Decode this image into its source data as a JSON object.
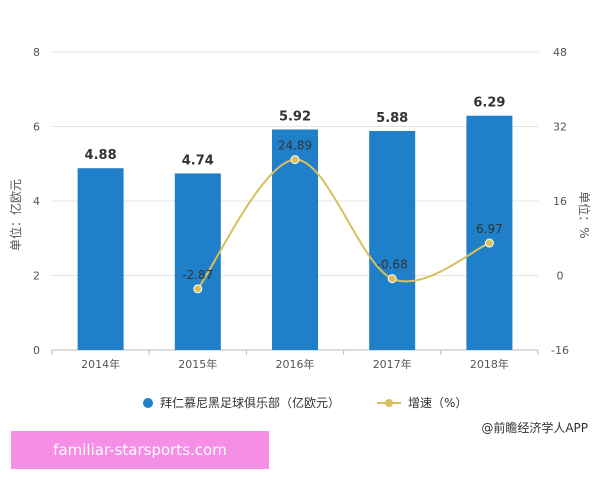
{
  "chart_data": {
    "type": "bar",
    "categories": [
      "2014年",
      "2015年",
      "2016年",
      "2017年",
      "2018年"
    ],
    "series": [
      {
        "name": "拜仁慕尼黑足球俱乐部（亿欧元）",
        "type": "bar",
        "axis": "left",
        "values": [
          4.88,
          4.74,
          5.92,
          5.88,
          6.29
        ],
        "labels": [
          "4.88",
          "4.74",
          "5.92",
          "5.88",
          "6.29"
        ]
      },
      {
        "name": "增速（%）",
        "type": "line",
        "axis": "right",
        "values": [
          null,
          -2.87,
          24.89,
          -0.68,
          6.97
        ],
        "labels": [
          "",
          "-2.87",
          "24.89",
          "-0.68",
          "6.97"
        ]
      }
    ],
    "ylabel": "单位：亿欧元",
    "y2label": "单位：%",
    "ylim": [
      0,
      8
    ],
    "y2lim": [
      -16,
      48
    ],
    "yticks": [
      "0",
      "2",
      "4",
      "6",
      "8"
    ],
    "y2ticks": [
      "-16",
      "0",
      "16",
      "32",
      "48"
    ],
    "y2tick_values": [
      -16,
      0,
      16,
      32,
      48
    ],
    "grid": true,
    "legend": "bottom",
    "colors": {
      "bar": "#1f7fc8",
      "line": "#d8c05a",
      "grid": "#e3e3e3"
    }
  },
  "source_credit": "@前瞻经济学人APP",
  "overlay_text": "familiar-starsports.com"
}
